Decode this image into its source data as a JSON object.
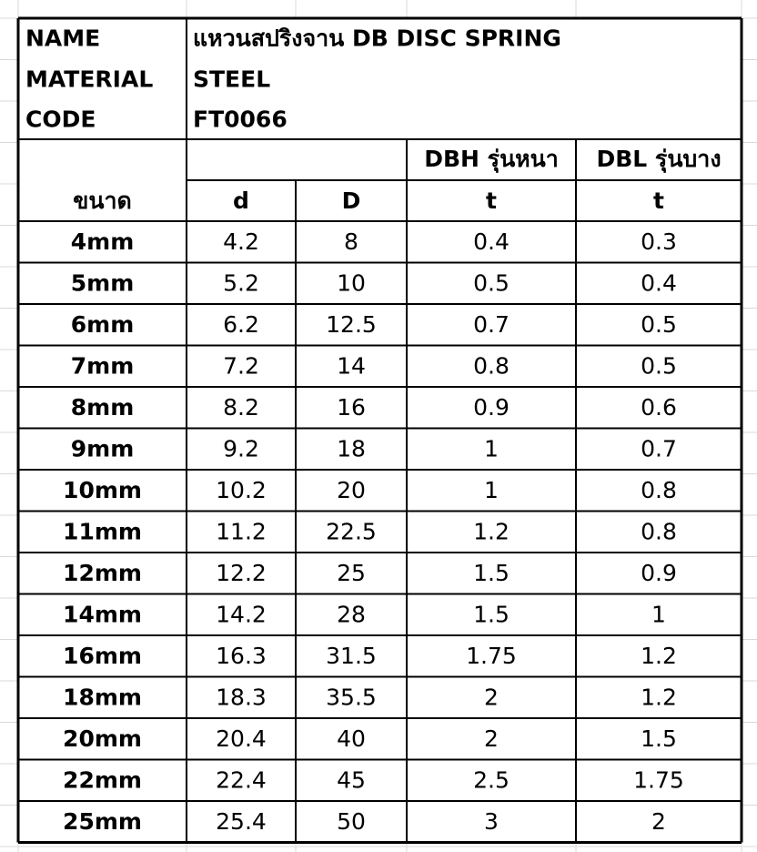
{
  "header": {
    "rows": [
      [
        "NAME",
        "แหวนสปริงจาน DB DISC SPRING"
      ],
      [
        "MATERIAL",
        "STEEL"
      ],
      [
        "CODE",
        "FT0066"
      ]
    ]
  },
  "table": {
    "group_headers": [
      "DBH รุ่นหนา",
      "DBL รุ่นบาง"
    ],
    "columns": [
      "ขนาด",
      "d",
      "D",
      "t",
      "t"
    ],
    "rows": [
      [
        "4mm",
        4.2,
        8,
        0.4,
        0.3
      ],
      [
        "5mm",
        5.2,
        10,
        0.5,
        0.4
      ],
      [
        "6mm",
        6.2,
        12.5,
        0.7,
        0.5
      ],
      [
        "7mm",
        7.2,
        14,
        0.8,
        0.5
      ],
      [
        "8mm",
        8.2,
        16,
        0.9,
        0.6
      ],
      [
        "9mm",
        9.2,
        18,
        1,
        0.7
      ],
      [
        "10mm",
        10.2,
        20,
        1,
        0.8
      ],
      [
        "11mm",
        11.2,
        22.5,
        1.2,
        0.8
      ],
      [
        "12mm",
        12.2,
        25,
        1.5,
        0.9
      ],
      [
        "14mm",
        14.2,
        28,
        1.5,
        1
      ],
      [
        "16mm",
        16.3,
        31.5,
        1.75,
        1.2
      ],
      [
        "18mm",
        18.3,
        35.5,
        2,
        1.2
      ],
      [
        "20mm",
        20.4,
        40,
        2,
        1.5
      ],
      [
        "22mm",
        22.4,
        45,
        2.5,
        1.75
      ],
      [
        "25mm",
        25.4,
        50,
        3,
        2
      ]
    ]
  }
}
